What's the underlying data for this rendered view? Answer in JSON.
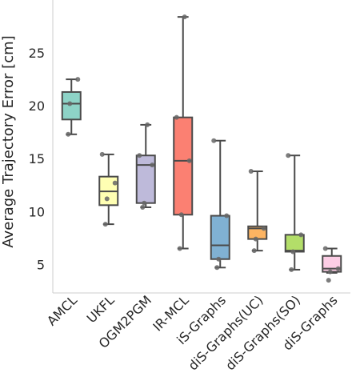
{
  "chart_data": {
    "type": "box",
    "title": "",
    "xlabel": "",
    "ylabel": "Average Trajectory Error [cm]",
    "ylim": [
      2.3,
      30
    ],
    "yticks": [
      5,
      10,
      15,
      20,
      25
    ],
    "grid": false,
    "legend": "none",
    "categories": [
      "AMCL",
      "UKFL",
      "OGM2PGM",
      "IR-MCL",
      "iS-Graphs",
      "diS-Graphs(UC)",
      "diS-Graphs(SO)",
      "diS-Graphs"
    ],
    "series": [
      {
        "category": "AMCL",
        "color": "#8dd3c7",
        "whisker_low": 17.3,
        "q1": 18.7,
        "median": 20.2,
        "q3": 21.3,
        "whisker_high": 22.5,
        "points": [
          17.3,
          20.2,
          22.5
        ]
      },
      {
        "category": "UKFL",
        "color": "#ffffb3",
        "whisker_low": 8.8,
        "q1": 10.6,
        "median": 11.9,
        "q3": 13.3,
        "whisker_high": 15.4,
        "points": [
          8.8,
          11.2,
          12.7,
          15.4
        ]
      },
      {
        "category": "OGM2PGM",
        "color": "#bebada",
        "whisker_low": 10.4,
        "q1": 10.8,
        "median": 14.4,
        "q3": 15.3,
        "whisker_high": 18.2,
        "points": [
          10.4,
          10.8,
          14.4,
          15.3,
          18.2
        ]
      },
      {
        "category": "IR-MCL",
        "color": "#fb8072",
        "whisker_low": 6.5,
        "q1": 9.7,
        "median": 14.8,
        "q3": 18.9,
        "whisker_high": 28.4,
        "points": [
          6.5,
          9.7,
          14.8,
          18.9,
          28.4
        ]
      },
      {
        "category": "iS-Graphs",
        "color": "#80b1d3",
        "whisker_low": 4.7,
        "q1": 5.5,
        "median": 6.8,
        "q3": 9.6,
        "whisker_high": 16.7,
        "points": [
          4.7,
          5.5,
          9.6,
          16.7
        ]
      },
      {
        "category": "diS-Graphs(UC)",
        "color": "#fdb462",
        "whisker_low": 6.3,
        "q1": 7.4,
        "median": 8.4,
        "q3": 8.6,
        "whisker_high": 13.8,
        "points": [
          6.3,
          7.4,
          8.4,
          13.8
        ]
      },
      {
        "category": "diS-Graphs(SO)",
        "color": "#b3de69",
        "whisker_low": 4.5,
        "q1": 6.2,
        "median": 6.3,
        "q3": 7.8,
        "whisker_high": 15.3,
        "points": [
          4.5,
          6.2,
          7.8,
          15.3
        ]
      },
      {
        "category": "diS-Graphs",
        "color": "#fccde5",
        "whisker_low": 4.2,
        "q1": 4.3,
        "median": 4.6,
        "q3": 5.8,
        "whisker_high": 6.5,
        "points": [
          3.5,
          4.3,
          4.6,
          6.5
        ]
      }
    ]
  }
}
